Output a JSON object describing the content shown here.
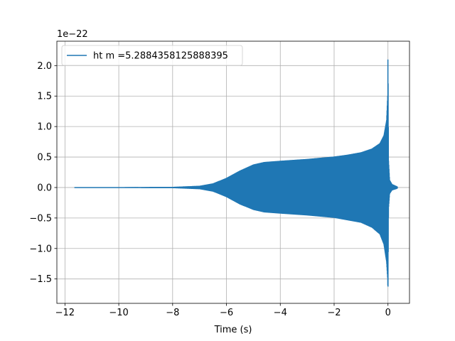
{
  "chart_data": {
    "type": "line",
    "title": "",
    "xlabel": "Time (s)",
    "ylabel": "",
    "y_offset_label": "1e−22",
    "xlim": [
      -12.3,
      0.8
    ],
    "ylim": [
      -1.9,
      2.4
    ],
    "x_ticks": [
      -12,
      -10,
      -8,
      -6,
      -4,
      -2,
      0
    ],
    "x_tick_labels": [
      "−12",
      "−10",
      "−8",
      "−6",
      "−4",
      "−2",
      "0"
    ],
    "y_ticks": [
      -1.5,
      -1.0,
      -0.5,
      0.0,
      0.5,
      1.0,
      1.5,
      2.0
    ],
    "y_tick_labels": [
      "−1.5",
      "−1.0",
      "−0.5",
      "0.0",
      "0.5",
      "1.0",
      "1.5",
      "2.0"
    ],
    "grid": true,
    "legend_position": "top-left",
    "series": [
      {
        "name": "ht m =5.2884358125888395",
        "color": "#1f77b4",
        "style": "oscillating chirp (filled envelope)",
        "x": [
          -11.65,
          -10.0,
          -8.0,
          -7.0,
          -6.5,
          -6.0,
          -5.5,
          -5.0,
          -4.6,
          -4.0,
          -3.0,
          -2.0,
          -1.5,
          -1.0,
          -0.6,
          -0.3,
          -0.15,
          -0.05,
          -0.01,
          0.0,
          0.02,
          0.06,
          0.15,
          0.3,
          0.35
        ],
        "upper": [
          0.0,
          0.0,
          0.002,
          0.02,
          0.06,
          0.15,
          0.27,
          0.37,
          0.41,
          0.43,
          0.46,
          0.5,
          0.53,
          0.57,
          0.63,
          0.72,
          0.85,
          1.1,
          1.5,
          2.24,
          0.45,
          0.12,
          0.05,
          0.02,
          0.01
        ],
        "lower": [
          0.0,
          0.0,
          -0.002,
          -0.02,
          -0.06,
          -0.15,
          -0.27,
          -0.36,
          -0.4,
          -0.42,
          -0.45,
          -0.49,
          -0.53,
          -0.57,
          -0.65,
          -0.76,
          -0.93,
          -1.22,
          -1.5,
          -1.76,
          -0.35,
          -0.1,
          -0.04,
          -0.02,
          -0.01
        ]
      }
    ]
  }
}
